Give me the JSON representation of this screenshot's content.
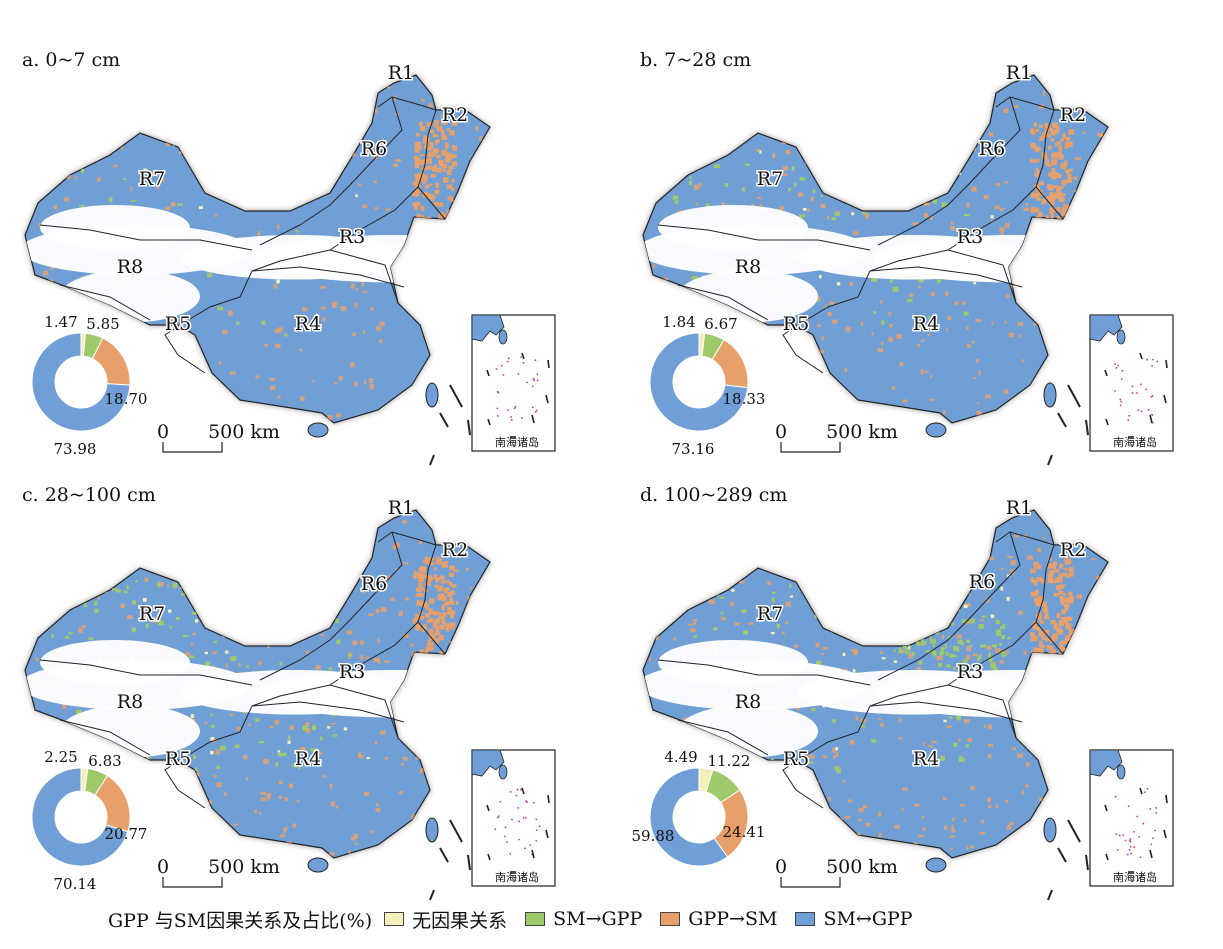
{
  "colors": {
    "none": "#f3f1b8",
    "sm_to_gpp": "#9fca6a",
    "gpp_to_sm": "#e8a06a",
    "bidirectional": "#6f9fd6",
    "background_white": "#ffffff",
    "boundary": "#222222",
    "island_dots": "#c0399b"
  },
  "regions": [
    "R1",
    "R2",
    "R3",
    "R4",
    "R5",
    "R6",
    "R7",
    "R8"
  ],
  "scale_bar": {
    "zero": "0",
    "value": "500 km"
  },
  "inset": {
    "label": "南海诸岛"
  },
  "panels": [
    {
      "title": "a. 0~7 cm",
      "donut_labels": [
        "1.47",
        "5.85",
        "18.70",
        "73.98"
      ],
      "donut_values": [
        1.47,
        5.85,
        18.7,
        73.98
      ]
    },
    {
      "title": "b. 7~28 cm",
      "donut_labels": [
        "1.84",
        "6.67",
        "18.33",
        "73.16"
      ],
      "donut_values": [
        1.84,
        6.67,
        18.33,
        73.16
      ]
    },
    {
      "title": "c. 28~100 cm",
      "donut_labels": [
        "2.25",
        "6.83",
        "20.77",
        "70.14"
      ],
      "donut_values": [
        2.25,
        6.83,
        20.77,
        70.14
      ]
    },
    {
      "title": "d. 100~289 cm",
      "donut_labels": [
        "4.49",
        "11.22",
        "24.41",
        "59.88"
      ],
      "donut_values": [
        4.49,
        11.22,
        24.41,
        59.88
      ]
    }
  ],
  "legend": {
    "title": "GPP 与SM因果关系及占比(%)",
    "items": [
      "无因果关系",
      "SM→GPP",
      "GPP→SM",
      "SM↔GPP"
    ]
  }
}
